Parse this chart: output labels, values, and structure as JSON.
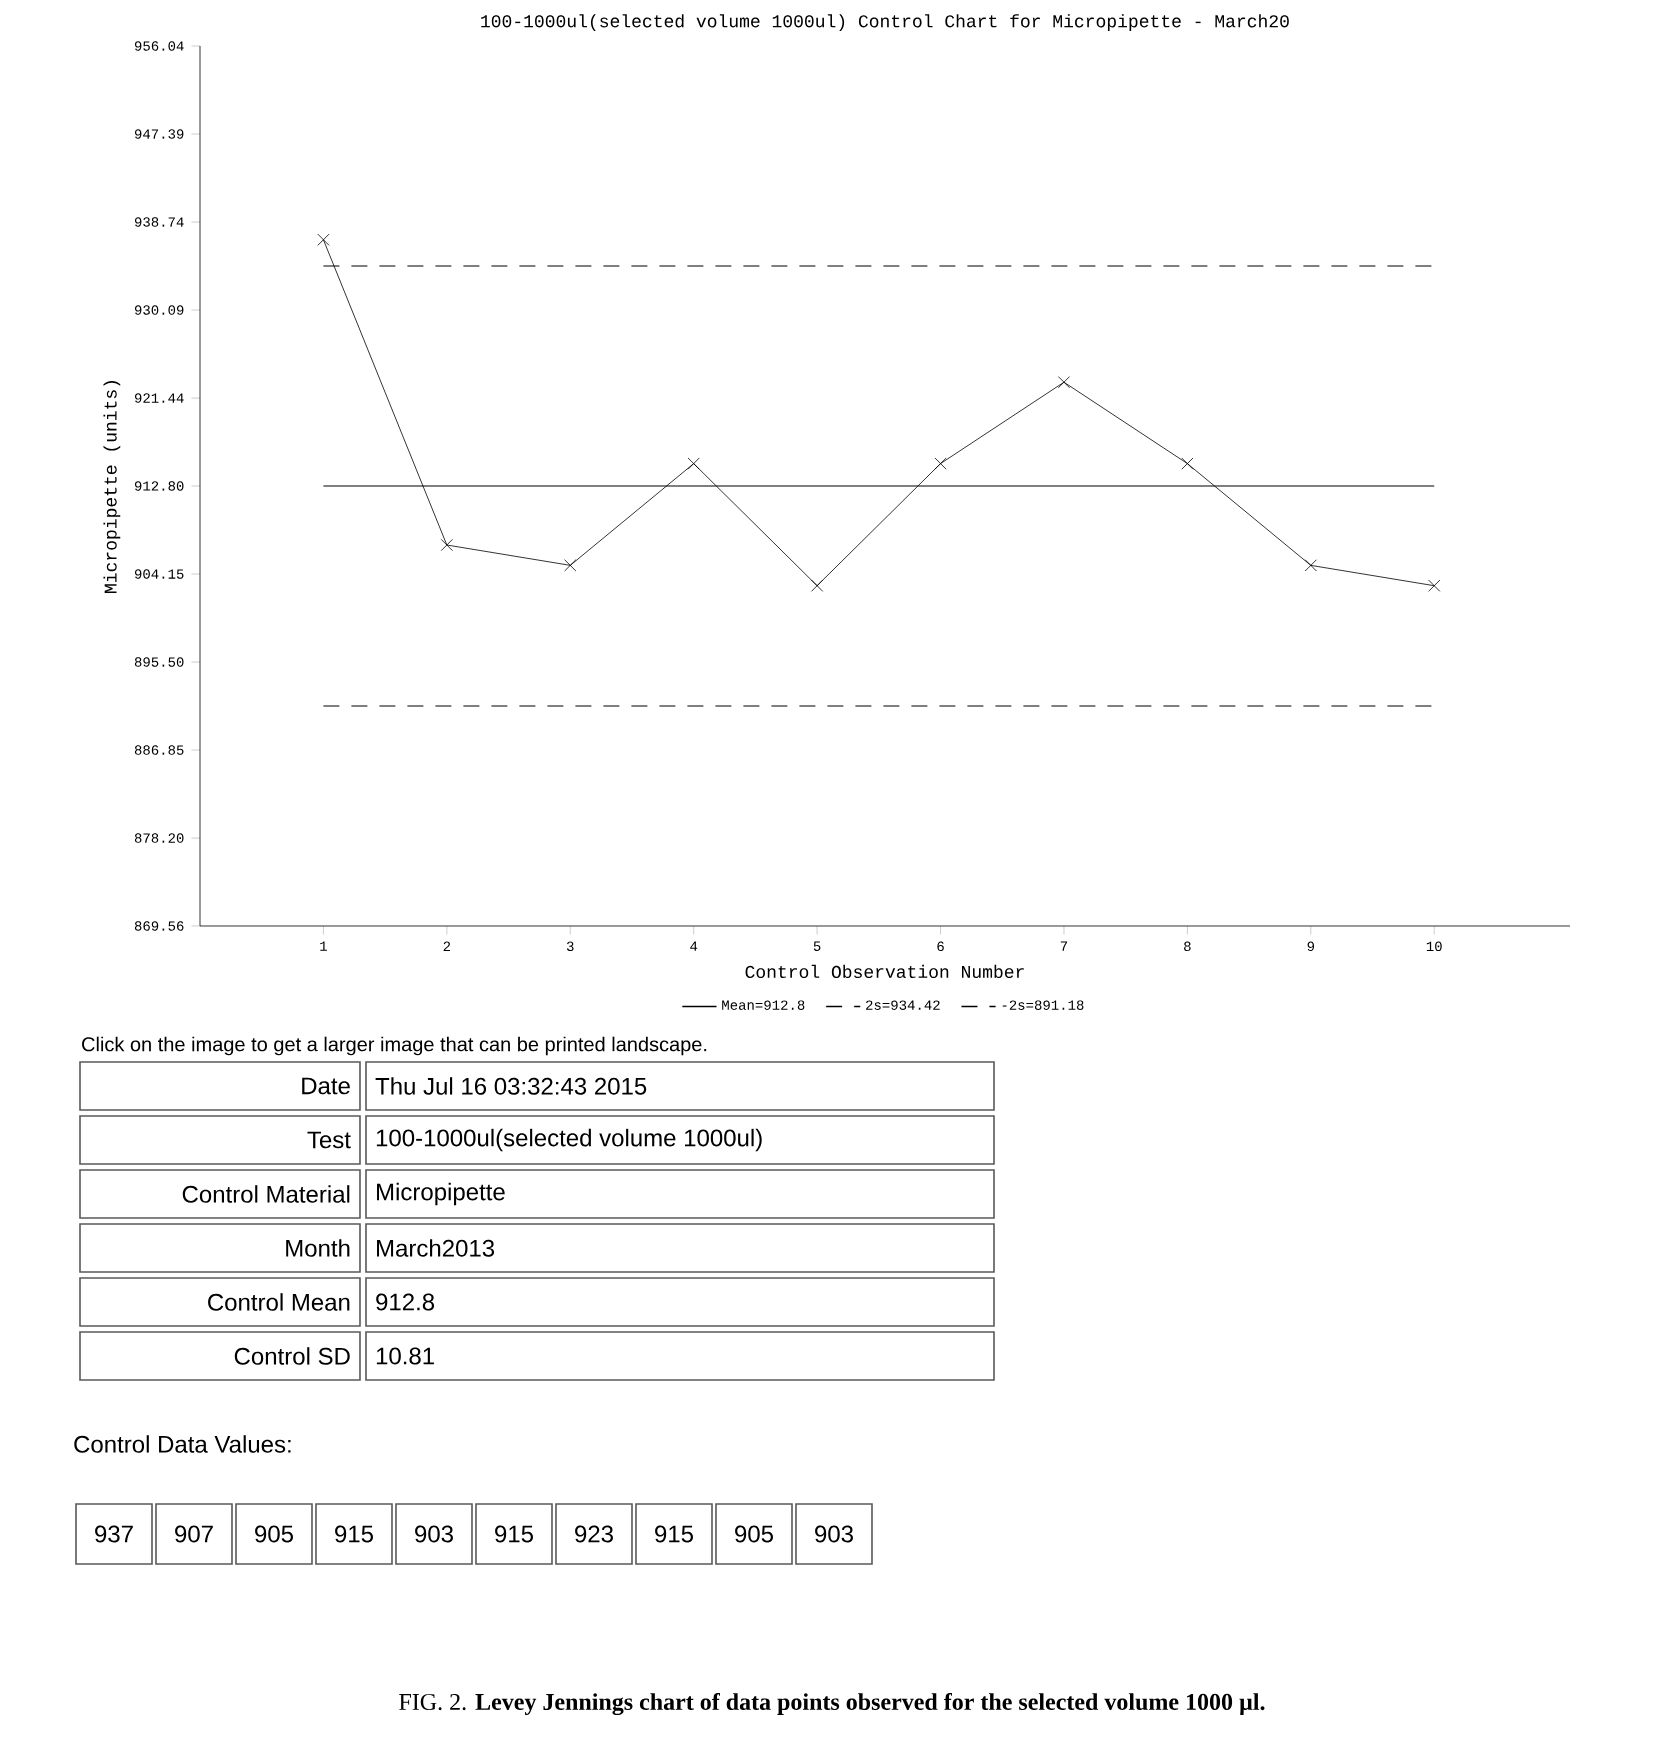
{
  "chart_data": {
    "type": "line",
    "title": "100-1000ul(selected volume 1000ul) Control Chart for Micropipette - March20",
    "xlabel": "Control Observation Number",
    "ylabel": "Micropipette (units)",
    "x": [
      1,
      2,
      3,
      4,
      5,
      6,
      7,
      8,
      9,
      10
    ],
    "values": [
      937,
      907,
      905,
      915,
      903,
      915,
      923,
      915,
      905,
      903
    ],
    "color": "#000000",
    "marker": "cross",
    "line_style": "solid",
    "xlim": [
      0,
      11.1
    ],
    "xticks": [
      1,
      2,
      3,
      4,
      5,
      6,
      7,
      8,
      9,
      10
    ],
    "ylim": [
      869.56,
      956.04
    ],
    "yticks": [
      869.56,
      {
        "value": 878.2,
        "label": "878.20"
      },
      886.85,
      {
        "value": 895.5,
        "label": "895.50"
      },
      904.15,
      {
        "value": 912.8,
        "label": "912.80"
      },
      921.44,
      930.09,
      938.74,
      947.39,
      956.04
    ],
    "ref_lines": [
      {
        "axis": "y",
        "value": 912.8,
        "label": "Mean=912.8",
        "line_style": "solid",
        "color": "#000000"
      },
      {
        "axis": "y",
        "value": 934.42,
        "label": "2s=934.42",
        "line_style": "dashed",
        "color": "#000000"
      },
      {
        "axis": "y",
        "value": 891.18,
        "label": "-2s=891.18",
        "line_style": "dashed",
        "color": "#000000"
      }
    ],
    "legend": "bottom",
    "annotations": [
      "Click on the image to get a larger image that can be printed landscape.",
      "Date",
      "Thu Jul 16 03:32:43 2015",
      "Test",
      "100-1000ul(selected volume 1000ul)",
      "Control Material",
      "Micropipette",
      "Month",
      "March2013",
      "Control Mean",
      "912.8",
      "Control SD",
      "10.81",
      "Control Data Values:",
      "937",
      "907",
      "905",
      "915",
      "903",
      "915",
      "923",
      "915",
      "905",
      "903",
      "FIG. 2. **Levey Jennings chart of data points observed for the selected volume 1000 µl.**"
    ]
  }
}
